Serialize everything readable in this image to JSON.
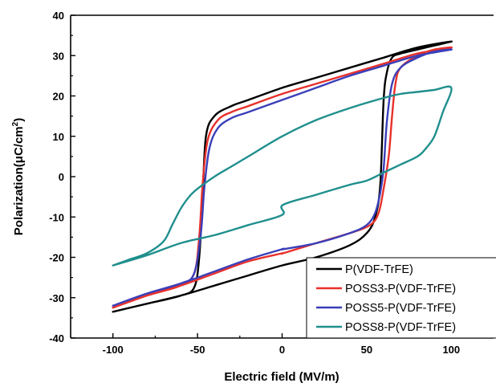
{
  "chart_data": {
    "type": "line",
    "xlabel": "Electric field (MV/m)",
    "ylabel": "Polarization(μC/cm²)",
    "ylabel_parts": {
      "main": "Polarization(μC/cm",
      "sup": "2",
      "close": ")"
    },
    "xlim": [
      -125,
      125
    ],
    "ylim": [
      -40,
      40
    ],
    "xticks": [
      -100,
      -50,
      0,
      50,
      100
    ],
    "yticks": [
      -40,
      -30,
      -20,
      -10,
      0,
      10,
      20,
      30,
      40
    ],
    "grid": false,
    "legend_position": "bottom-right",
    "series": [
      {
        "name": "P(VDF-TrFE)",
        "color": "#000000",
        "x": [
          -100,
          -80,
          -60,
          -52,
          -49,
          -47,
          -45,
          -40,
          -30,
          -20,
          0,
          20,
          40,
          60,
          80,
          100,
          90,
          80,
          70,
          65,
          62,
          60,
          58,
          55,
          50,
          40,
          20,
          0,
          -20,
          -40,
          -60,
          -80,
          -100
        ],
        "y": [
          -33.5,
          -31.5,
          -29.5,
          -27.5,
          -20,
          -5,
          10,
          15,
          17.5,
          19,
          22,
          24.5,
          27,
          29.5,
          32,
          33.5,
          32.5,
          31.5,
          30.5,
          29.5,
          26,
          19,
          -2,
          -10,
          -14,
          -17,
          -20,
          -22,
          -24.5,
          -27,
          -29.5,
          -31.5,
          -33.5
        ]
      },
      {
        "name": "POSS3-P(VDF-TrFE)",
        "color": "#e8312b",
        "x": [
          -100,
          -80,
          -60,
          -52,
          -49,
          -47,
          -44,
          -38,
          -30,
          -20,
          0,
          20,
          40,
          60,
          80,
          100,
          90,
          80,
          70,
          67,
          65,
          63,
          60,
          57,
          52,
          40,
          20,
          0.5,
          0,
          -20,
          -40,
          -60,
          -80,
          -100
        ],
        "y": [
          -32.5,
          -29.5,
          -27,
          -24,
          -15,
          -2,
          9,
          14,
          16,
          17.5,
          20.5,
          23,
          25.5,
          28,
          30.5,
          32,
          31.5,
          30,
          27,
          23,
          15,
          5,
          -3,
          -9,
          -12,
          -14,
          -16.5,
          -19,
          -19,
          -21,
          -24,
          -27,
          -29.5,
          -32.5
        ]
      },
      {
        "name": "POSS5-P(VDF-TrFE)",
        "color": "#3a3fb8",
        "x": [
          -100,
          -80,
          -60,
          -52,
          -48,
          -46,
          -43,
          -38,
          -30,
          -20,
          0,
          20,
          40,
          60,
          80,
          100,
          90,
          80,
          70,
          65,
          62,
          60,
          58,
          55,
          50,
          40,
          20,
          0.5,
          0,
          -20,
          -40,
          -60,
          -80,
          -100
        ],
        "y": [
          -32,
          -29,
          -26.5,
          -24,
          -14,
          -3,
          7,
          12,
          14.5,
          16,
          19,
          22,
          25,
          27.5,
          30,
          31.5,
          31,
          29.5,
          27,
          23,
          14,
          2,
          -4,
          -9,
          -12,
          -14,
          -16.5,
          -18,
          -18,
          -20.5,
          -23.5,
          -26.5,
          -29,
          -32
        ]
      },
      {
        "name": "POSS8-P(VDF-TrFE)",
        "color": "#1f8f8d",
        "x": [
          -100,
          -90,
          -80,
          -70,
          -65,
          -60,
          -55,
          -50,
          -40,
          -30,
          -20,
          0,
          20,
          40,
          60,
          70,
          80,
          90,
          100,
          95,
          90,
          85,
          80,
          70,
          60,
          50,
          40,
          20,
          0.5,
          0,
          -20,
          -40,
          -60,
          -80,
          -100
        ],
        "y": [
          -22,
          -20.5,
          -19,
          -16,
          -12,
          -8,
          -5,
          -3,
          0,
          2.5,
          5,
          10,
          14,
          17,
          19.5,
          20.5,
          21,
          21.5,
          22,
          16,
          10,
          7,
          5,
          3,
          1,
          -1,
          -2,
          -4.5,
          -7,
          -9.5,
          -12,
          -14.5,
          -16.5,
          -19.5,
          -22
        ]
      }
    ]
  }
}
